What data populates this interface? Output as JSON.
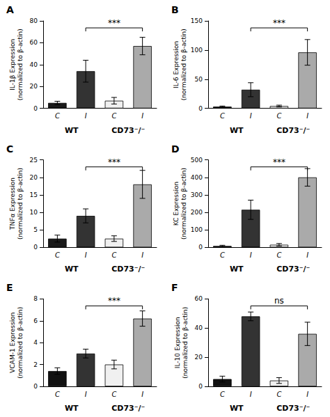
{
  "chart_data": [
    {
      "type": "bar",
      "title": "A",
      "ylabel": "IL-1β Expression\n(normalized to β-actin)",
      "categories": [
        "C",
        "I",
        "C",
        "I"
      ],
      "group_labels": [
        "WT",
        "CD73⁻/⁻"
      ],
      "values": [
        5,
        34,
        7,
        57
      ],
      "errors": [
        1.5,
        10,
        3,
        8
      ],
      "colors": [
        "#1a1a1a",
        "#333333",
        "#f0f0f0",
        "#aaaaaa"
      ],
      "ylim": [
        0,
        80
      ],
      "yticks": [
        0,
        20,
        40,
        60,
        80
      ],
      "grid": false,
      "annotations": [
        {
          "text": "***",
          "between": [
            1,
            3
          ]
        }
      ]
    },
    {
      "type": "bar",
      "title": "B",
      "ylabel": "IL-6 Expression\n(normalized to β-actin)",
      "categories": [
        "C",
        "I",
        "C",
        "I"
      ],
      "group_labels": [
        "WT",
        "CD73⁻/⁻"
      ],
      "values": [
        3,
        32,
        4,
        96
      ],
      "errors": [
        1,
        12,
        1.5,
        22
      ],
      "colors": [
        "#1a1a1a",
        "#333333",
        "#f0f0f0",
        "#aaaaaa"
      ],
      "ylim": [
        0,
        150
      ],
      "yticks": [
        0,
        50,
        100,
        150
      ],
      "grid": false,
      "annotations": [
        {
          "text": "***",
          "between": [
            1,
            3
          ]
        }
      ]
    },
    {
      "type": "bar",
      "title": "C",
      "ylabel": "TNFα Expression\n(normalized to β-actin)",
      "categories": [
        "C",
        "I",
        "C",
        "I"
      ],
      "group_labels": [
        "WT",
        "CD73⁻/⁻"
      ],
      "values": [
        2.5,
        9.0,
        2.5,
        18.0
      ],
      "errors": [
        1.0,
        2.0,
        0.8,
        4.0
      ],
      "colors": [
        "#1a1a1a",
        "#333333",
        "#f0f0f0",
        "#aaaaaa"
      ],
      "ylim": [
        0,
        25
      ],
      "yticks": [
        0,
        5,
        10,
        15,
        20,
        25
      ],
      "grid": false,
      "annotations": [
        {
          "text": "***",
          "between": [
            1,
            3
          ]
        }
      ]
    },
    {
      "type": "bar",
      "title": "D",
      "ylabel": "KC Expression\n(normalized to β-actin)",
      "categories": [
        "C",
        "I",
        "C",
        "I"
      ],
      "group_labels": [
        "WT",
        "CD73⁻/⁻"
      ],
      "values": [
        8,
        215,
        15,
        400
      ],
      "errors": [
        4,
        55,
        7,
        50
      ],
      "colors": [
        "#1a1a1a",
        "#333333",
        "#f0f0f0",
        "#aaaaaa"
      ],
      "ylim": [
        0,
        500
      ],
      "yticks": [
        0,
        100,
        200,
        300,
        400,
        500
      ],
      "grid": false,
      "annotations": [
        {
          "text": "***",
          "between": [
            1,
            3
          ]
        }
      ]
    },
    {
      "type": "bar",
      "title": "E",
      "ylabel": "VCAM-1 Expression\n(normalized to β-actin)",
      "categories": [
        "C",
        "I",
        "C",
        "I"
      ],
      "group_labels": [
        "WT",
        "CD73⁻/⁻"
      ],
      "values": [
        1.4,
        3.0,
        2.0,
        6.2
      ],
      "errors": [
        0.3,
        0.4,
        0.4,
        0.7
      ],
      "colors": [
        "#111111",
        "#333333",
        "#f0f0f0",
        "#aaaaaa"
      ],
      "ylim": [
        0,
        8
      ],
      "yticks": [
        0,
        2,
        4,
        6,
        8
      ],
      "grid": false,
      "annotations": [
        {
          "text": "***",
          "between": [
            1,
            3
          ]
        }
      ]
    },
    {
      "type": "bar",
      "title": "F",
      "ylabel": "IL-10 Expression\n(normalized to β-actin)",
      "categories": [
        "C",
        "I",
        "C",
        "I"
      ],
      "group_labels": [
        "WT",
        "CD73⁻/⁻"
      ],
      "values": [
        5,
        48,
        4,
        36
      ],
      "errors": [
        2,
        3,
        2,
        8
      ],
      "colors": [
        "#111111",
        "#333333",
        "#f0f0f0",
        "#aaaaaa"
      ],
      "ylim": [
        0,
        60
      ],
      "yticks": [
        0,
        20,
        40,
        60
      ],
      "grid": false,
      "annotations": [
        {
          "text": "ns",
          "between": [
            1,
            3
          ]
        }
      ]
    }
  ]
}
